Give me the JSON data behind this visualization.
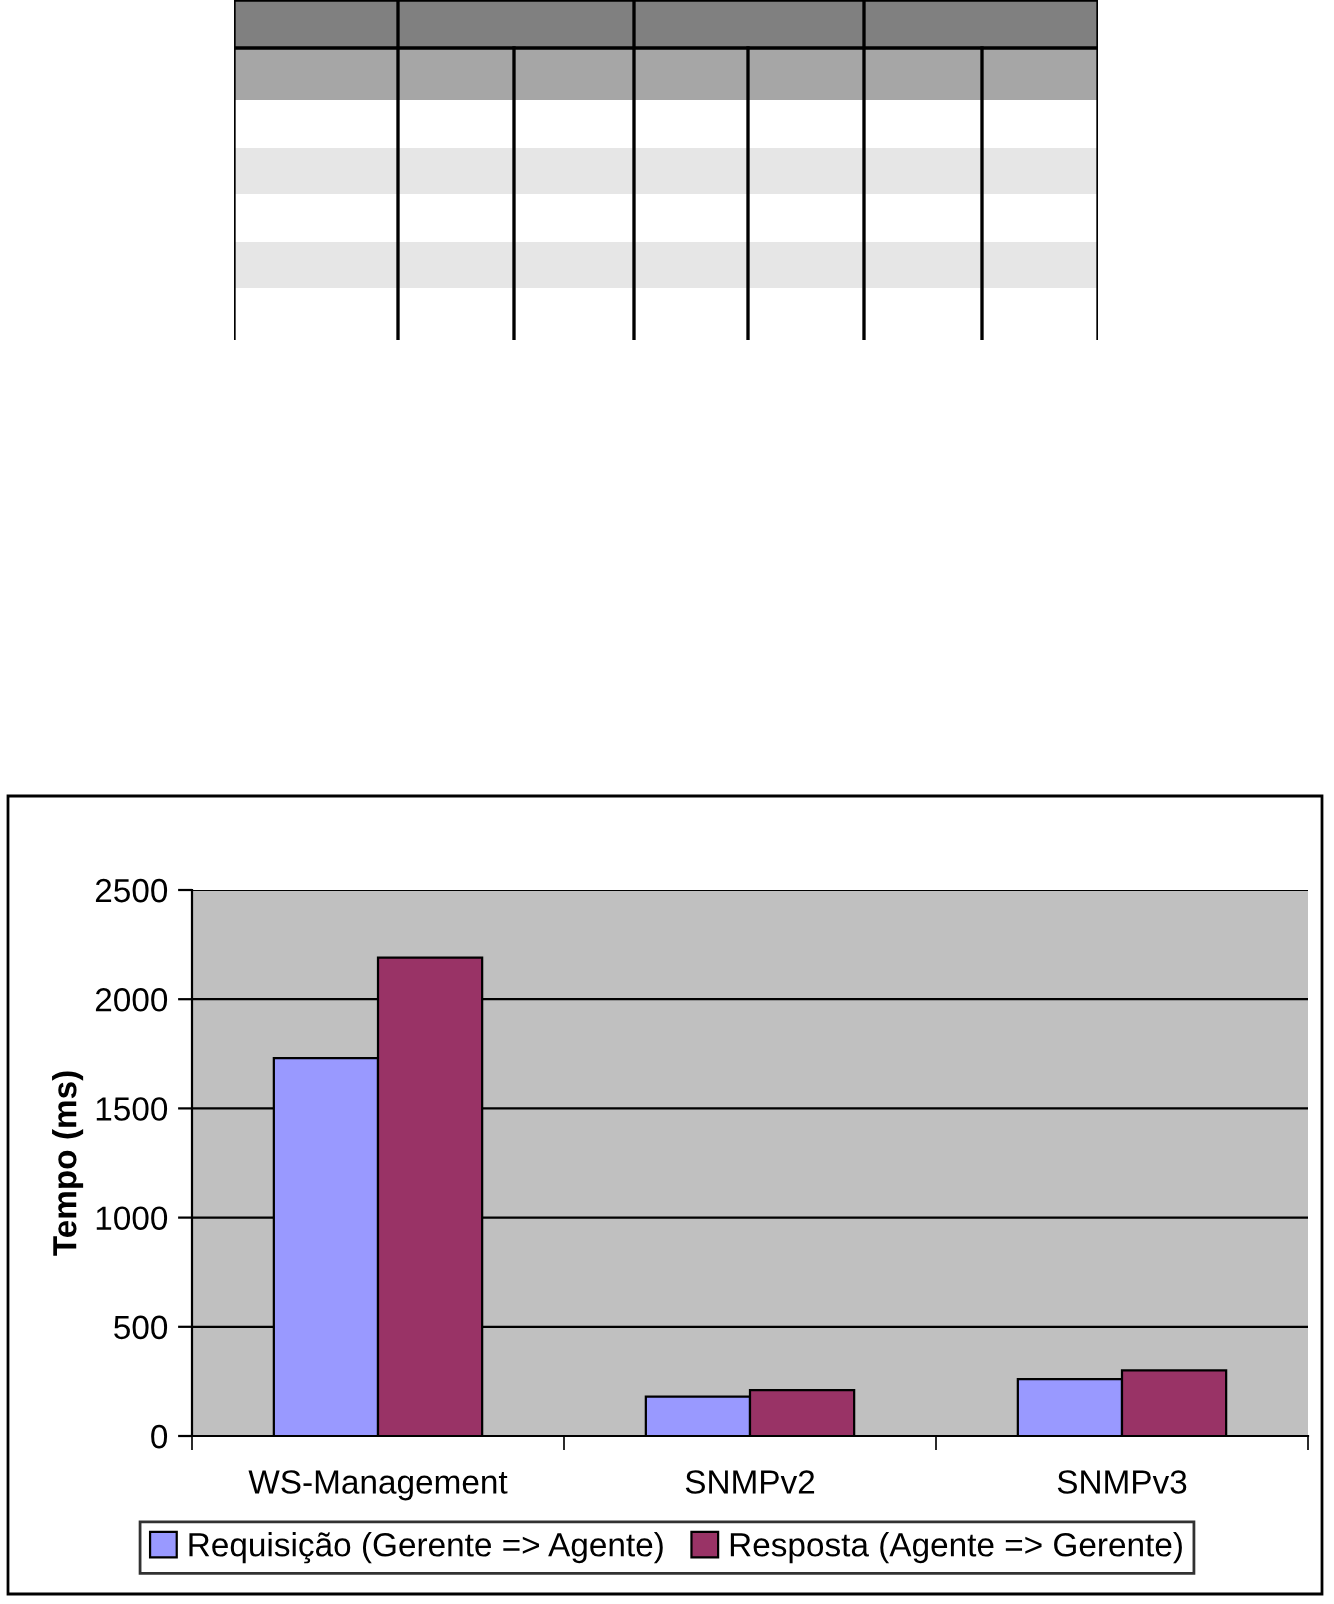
{
  "chart_data": {
    "type": "bar",
    "ylabel": "Tempo (ms)",
    "categories": [
      "WS-Management",
      "SNMPv2",
      "SNMPv3"
    ],
    "series": [
      {
        "name": "Requisição (Gerente => Agente)",
        "color": "#9999ff",
        "values": [
          1730,
          180,
          260
        ]
      },
      {
        "name": "Resposta (Agente => Gerente)",
        "color": "#993366",
        "values": [
          2190,
          210,
          300
        ]
      }
    ],
    "ylim": [
      0,
      2500
    ],
    "yticks": [
      0,
      500,
      1000,
      1500,
      2000,
      2500
    ],
    "grid": "y",
    "legend": "bottom"
  }
}
